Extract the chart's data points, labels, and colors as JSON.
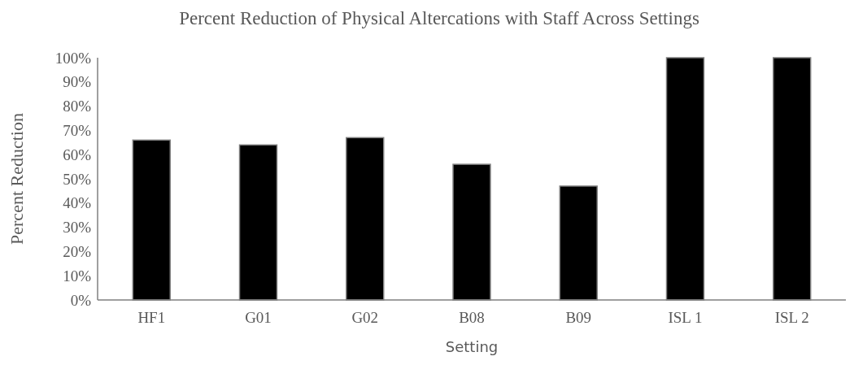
{
  "chart_data": {
    "type": "bar",
    "title": "Percent Reduction of Physical Altercations with Staff Across Settings",
    "xlabel": "Setting",
    "ylabel": "Percent Reduction",
    "categories": [
      "HF1",
      "G01",
      "G02",
      "B08",
      "B09",
      "ISL 1",
      "ISL 2"
    ],
    "values": [
      66,
      64,
      67,
      56,
      47,
      100,
      100
    ],
    "color": "#000000",
    "ylim": [
      0,
      100
    ],
    "yticks": [
      {
        "value": 0,
        "label": "0%"
      },
      {
        "value": 10,
        "label": "10%"
      },
      {
        "value": 20,
        "label": "20%"
      },
      {
        "value": 30,
        "label": "30%"
      },
      {
        "value": 40,
        "label": "40%"
      },
      {
        "value": 50,
        "label": "50%"
      },
      {
        "value": 60,
        "label": "60%"
      },
      {
        "value": 70,
        "label": "70%"
      },
      {
        "value": 80,
        "label": "80%"
      },
      {
        "value": 90,
        "label": "90%"
      },
      {
        "value": 100,
        "label": "100%"
      }
    ],
    "grid": false
  }
}
